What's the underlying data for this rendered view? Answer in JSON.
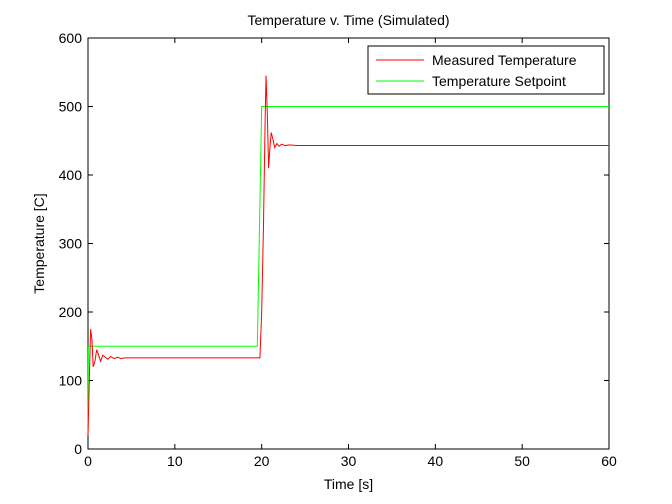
{
  "chart_data": {
    "type": "line",
    "title": "Temperature v. Time (Simulated)",
    "xlabel": "Time [s]",
    "ylabel": "Temperature [C]",
    "xlim": [
      0,
      60
    ],
    "ylim": [
      0,
      600
    ],
    "xticks": [
      0,
      10,
      20,
      30,
      40,
      50,
      60
    ],
    "yticks": [
      0,
      100,
      200,
      300,
      400,
      500,
      600
    ],
    "grid": false,
    "legend_position": "top-right",
    "series": [
      {
        "name": "Measured Temperature",
        "color": "#ff0000",
        "x": [
          0,
          0.15,
          0.3,
          0.45,
          0.6,
          0.8,
          1.0,
          1.2,
          1.45,
          1.7,
          2.0,
          2.3,
          2.6,
          3.0,
          3.4,
          3.8,
          4.2,
          4.6,
          5.0,
          6,
          10,
          15,
          19.8,
          20.0,
          20.2,
          20.4,
          20.5,
          20.65,
          20.8,
          20.95,
          21.1,
          21.3,
          21.5,
          21.75,
          22.0,
          22.3,
          22.7,
          23.2,
          24,
          30,
          40,
          50,
          60
        ],
        "y": [
          20,
          100,
          175,
          160,
          120,
          128,
          145,
          138,
          128,
          137,
          134,
          131,
          135,
          132,
          134,
          132,
          133,
          133,
          133,
          133,
          133,
          133,
          133,
          200,
          320,
          480,
          545,
          490,
          410,
          440,
          462,
          452,
          440,
          446,
          442,
          445,
          443,
          444,
          443,
          443,
          443,
          443,
          443
        ]
      },
      {
        "name": "Temperature Setpoint",
        "color": "#00ff00",
        "x": [
          0,
          0.05,
          19.5,
          20.0,
          60
        ],
        "y": [
          20,
          150,
          150,
          500,
          500
        ]
      }
    ]
  }
}
